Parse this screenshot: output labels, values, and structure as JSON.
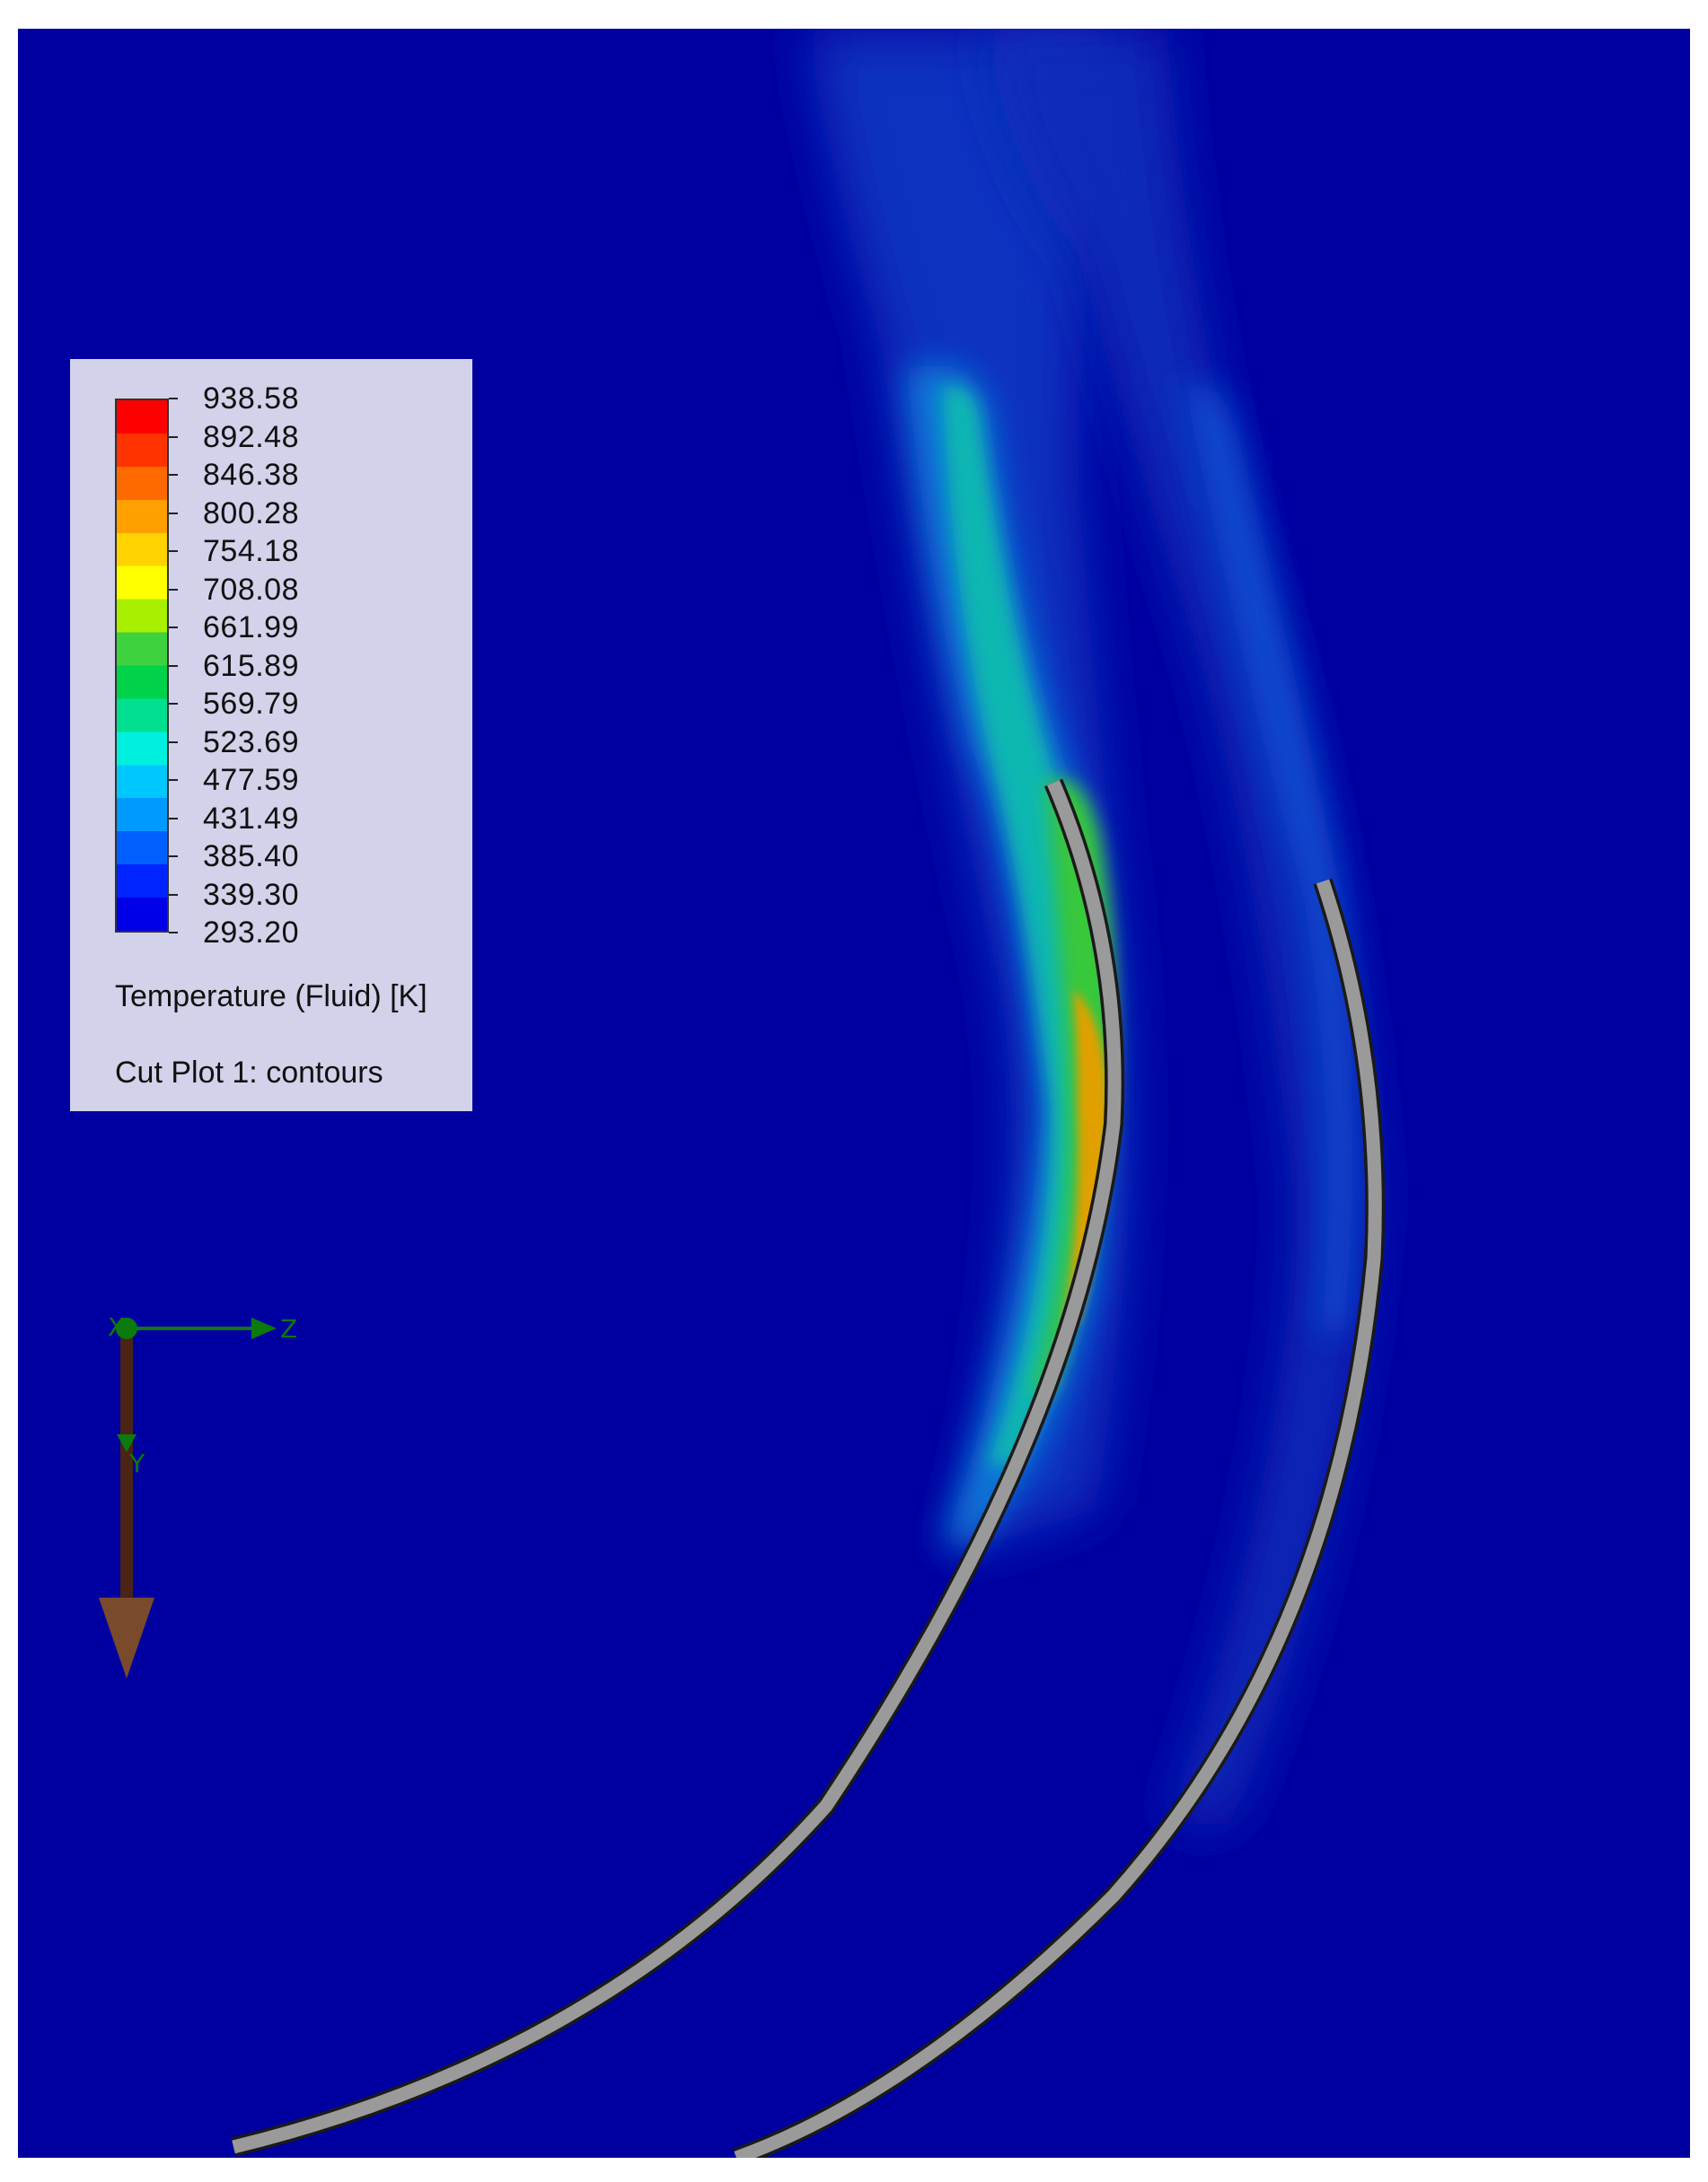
{
  "legend": {
    "title": "Temperature (Fluid) [K]",
    "plot_label": "Cut Plot 1: contours",
    "ticks": [
      "938.58",
      "892.48",
      "846.38",
      "800.28",
      "754.18",
      "708.08",
      "661.99",
      "615.89",
      "569.79",
      "523.69",
      "477.59",
      "431.49",
      "385.40",
      "339.30",
      "293.20"
    ],
    "min": 293.2,
    "max": 938.58,
    "colors": [
      "#ff0000",
      "#ff3300",
      "#ff6a00",
      "#ffa000",
      "#ffd200",
      "#ffff00",
      "#a8f000",
      "#3ed23e",
      "#00d24a",
      "#00e090",
      "#00f0e0",
      "#00c8ff",
      "#009aff",
      "#0060ff",
      "#0024ff",
      "#0000e8"
    ]
  },
  "triad": {
    "axis_z": "Z",
    "axis_y": "Y",
    "axis_x": "X"
  },
  "colors": {
    "background": "#0000a0",
    "pipe": "#9a9a9a",
    "pipe_outline": "#1a1a1a",
    "legend_bg": "#d2d2ea"
  }
}
